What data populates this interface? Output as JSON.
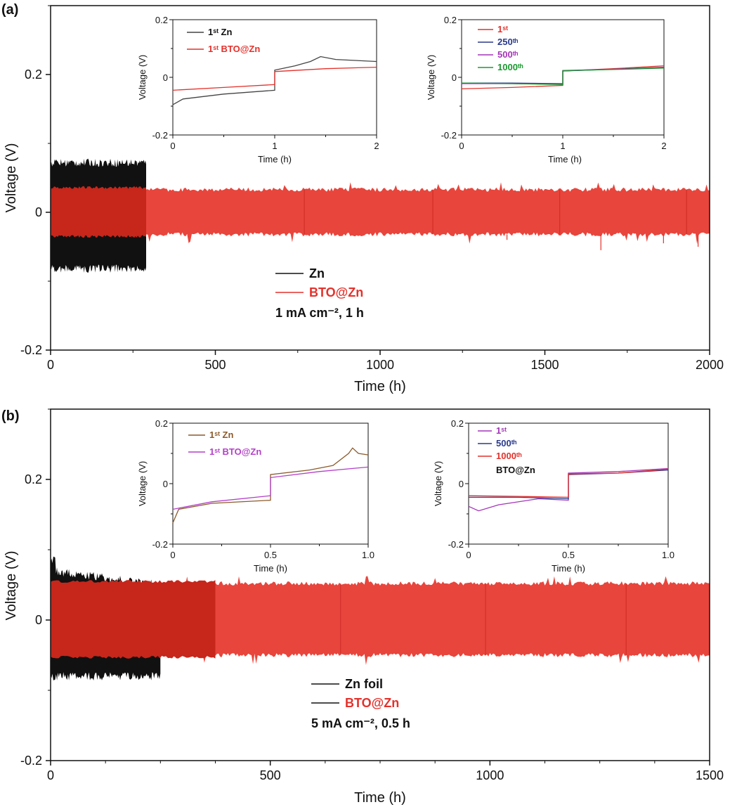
{
  "colors": {
    "zn": "#111111",
    "bto": "#e4312b",
    "bto_dark": "#c7261b"
  },
  "chart_data": [
    {
      "panel": "(a)",
      "type": "line",
      "xlabel": "Time (h)",
      "ylabel": "Voltage (V)",
      "xlim": [
        0,
        2000
      ],
      "ylim": [
        -0.2,
        0.3
      ],
      "xticks": [
        "0",
        "500",
        "1000",
        "1500",
        "2000"
      ],
      "yticks": [
        "-0.2",
        "0",
        "0.2"
      ],
      "series": [
        {
          "name": "Zn",
          "color": "#111111",
          "end_time": 290,
          "voltage_band": [
            -0.082,
            0.072
          ]
        },
        {
          "name": "BTO@Zn",
          "color": "#e4312b",
          "end_time": 2000,
          "voltage_band": [
            -0.032,
            0.033
          ]
        }
      ],
      "legend": {
        "zn": "Zn",
        "bto": "BTO@Zn",
        "condition": "1 mA cm⁻², 1 h"
      },
      "insets": [
        {
          "xlabel": "Time (h)",
          "ylabel": "Voltage (V)",
          "xlim": [
            0,
            2
          ],
          "ylim": [
            -0.2,
            0.2
          ],
          "xticks": [
            "0",
            "1",
            "2"
          ],
          "yticks": [
            "-0.2",
            "0",
            "0.2"
          ],
          "legend": [
            {
              "name": "1ˢᵗ Zn",
              "color": "#444444"
            },
            {
              "name": "1ˢᵗ BTO@Zn",
              "color": "#e4312b"
            }
          ],
          "series": [
            {
              "name": "1st Zn",
              "color": "#444444",
              "points": [
                [
                  0,
                  -0.095
                ],
                [
                  0.1,
                  -0.075
                ],
                [
                  0.5,
                  -0.058
                ],
                [
                  1.0,
                  -0.045
                ],
                [
                  1.0,
                  0.025
                ],
                [
                  1.2,
                  0.04
                ],
                [
                  1.35,
                  0.055
                ],
                [
                  1.45,
                  0.072
                ],
                [
                  1.6,
                  0.062
                ],
                [
                  2.0,
                  0.055
                ]
              ]
            },
            {
              "name": "1st BTO@Zn",
              "color": "#e4312b",
              "points": [
                [
                  0,
                  -0.045
                ],
                [
                  0.5,
                  -0.035
                ],
                [
                  1.0,
                  -0.025
                ],
                [
                  1.0,
                  0.02
                ],
                [
                  1.5,
                  0.03
                ],
                [
                  2.0,
                  0.035
                ]
              ]
            }
          ]
        },
        {
          "xlabel": "Time (h)",
          "ylabel": "Voltage (V)",
          "xlim": [
            0,
            2
          ],
          "ylim": [
            -0.2,
            0.2
          ],
          "xticks": [
            "0",
            "1",
            "2"
          ],
          "yticks": [
            "-0.2",
            "0",
            "0.2"
          ],
          "legend": [
            {
              "name": "1ˢᵗ",
              "color": "#e4312b"
            },
            {
              "name": "250ᵗʰ",
              "color": "#2a3a8c"
            },
            {
              "name": "500ᵗʰ",
              "color": "#a335b8"
            },
            {
              "name": "1000ᵗʰ",
              "color": "#1a9a2e"
            }
          ],
          "series": [
            {
              "name": "1st",
              "color": "#e4312b",
              "points": [
                [
                  0,
                  -0.04
                ],
                [
                  0.5,
                  -0.035
                ],
                [
                  1.0,
                  -0.028
                ],
                [
                  1.0,
                  0.022
                ],
                [
                  1.5,
                  0.03
                ],
                [
                  2.0,
                  0.04
                ]
              ]
            },
            {
              "name": "250th",
              "color": "#2a3a8c",
              "points": [
                [
                  0,
                  -0.02
                ],
                [
                  0.5,
                  -0.02
                ],
                [
                  1.0,
                  -0.022
                ],
                [
                  1.0,
                  0.022
                ],
                [
                  1.5,
                  0.028
                ],
                [
                  2.0,
                  0.035
                ]
              ]
            },
            {
              "name": "500th",
              "color": "#a335b8",
              "points": [
                [
                  0,
                  -0.022
                ],
                [
                  0.5,
                  -0.022
                ],
                [
                  1.0,
                  -0.024
                ],
                [
                  1.0,
                  0.024
                ],
                [
                  1.5,
                  0.028
                ],
                [
                  2.0,
                  0.034
                ]
              ]
            },
            {
              "name": "1000th",
              "color": "#1a9a2e",
              "points": [
                [
                  0,
                  -0.02
                ],
                [
                  0.5,
                  -0.022
                ],
                [
                  1.0,
                  -0.025
                ],
                [
                  1.0,
                  0.023
                ],
                [
                  1.5,
                  0.027
                ],
                [
                  2.0,
                  0.032
                ]
              ]
            }
          ]
        }
      ]
    },
    {
      "panel": "(b)",
      "type": "line",
      "xlabel": "Time (h)",
      "ylabel": "Voltage (V)",
      "xlim": [
        0,
        1500
      ],
      "ylim": [
        -0.2,
        0.3
      ],
      "xticks": [
        "0",
        "500",
        "1000",
        "1500"
      ],
      "yticks": [
        "-0.2",
        "0",
        "0.2"
      ],
      "series": [
        {
          "name": "Zn foil",
          "color": "#111111",
          "end_time": 250,
          "voltage_band": [
            -0.08,
            0.07
          ]
        },
        {
          "name": "BTO@Zn",
          "color": "#e4312b",
          "end_time": 1500,
          "voltage_band": [
            -0.05,
            0.052
          ]
        }
      ],
      "legend": {
        "zn": "Zn foil",
        "bto": "BTO@Zn",
        "condition": "5 mA cm⁻², 0.5 h"
      },
      "insets": [
        {
          "xlabel": "Time (h)",
          "ylabel": "Voltage (V)",
          "xlim": [
            0,
            1.0
          ],
          "ylim": [
            -0.2,
            0.2
          ],
          "xticks": [
            "0",
            "0.5",
            "1.0"
          ],
          "yticks": [
            "-0.2",
            "0",
            "0.2"
          ],
          "legend": [
            {
              "name": "1ˢᵗ Zn",
              "color": "#8b5a2b"
            },
            {
              "name": "1ˢᵗ BTO@Zn",
              "color": "#b43fc9"
            }
          ],
          "series": [
            {
              "name": "1st Zn",
              "color": "#8b5a2b",
              "points": [
                [
                  0,
                  -0.13
                ],
                [
                  0.03,
                  -0.085
                ],
                [
                  0.2,
                  -0.065
                ],
                [
                  0.5,
                  -0.055
                ],
                [
                  0.5,
                  0.03
                ],
                [
                  0.7,
                  0.045
                ],
                [
                  0.82,
                  0.06
                ],
                [
                  0.9,
                  0.1
                ],
                [
                  0.92,
                  0.118
                ],
                [
                  0.95,
                  0.1
                ],
                [
                  1.0,
                  0.095
                ]
              ]
            },
            {
              "name": "1st BTO@Zn",
              "color": "#b43fc9",
              "points": [
                [
                  0,
                  -0.085
                ],
                [
                  0.2,
                  -0.06
                ],
                [
                  0.5,
                  -0.04
                ],
                [
                  0.5,
                  0.02
                ],
                [
                  0.75,
                  0.04
                ],
                [
                  1.0,
                  0.055
                ]
              ]
            }
          ]
        },
        {
          "xlabel": "Time (h)",
          "ylabel": "Voltage (V)",
          "xlim": [
            0,
            1.0
          ],
          "ylim": [
            -0.2,
            0.2
          ],
          "xticks": [
            "0",
            "0.5",
            "1.0"
          ],
          "yticks": [
            "-0.2",
            "0",
            "0.2"
          ],
          "legend": [
            {
              "name": "1ˢᵗ",
              "color": "#a335b8"
            },
            {
              "name": "500ᵗʰ",
              "color": "#2a3a8c"
            },
            {
              "name": "1000ᵗʰ",
              "color": "#e4312b"
            }
          ],
          "note": "BTO@Zn",
          "series": [
            {
              "name": "1st",
              "color": "#a335b8",
              "points": [
                [
                  0,
                  -0.075
                ],
                [
                  0.05,
                  -0.09
                ],
                [
                  0.15,
                  -0.07
                ],
                [
                  0.35,
                  -0.05
                ],
                [
                  0.5,
                  -0.055
                ],
                [
                  0.5,
                  0.035
                ],
                [
                  0.75,
                  0.04
                ],
                [
                  1.0,
                  0.05
                ]
              ]
            },
            {
              "name": "500th",
              "color": "#2a3a8c",
              "points": [
                [
                  0,
                  -0.045
                ],
                [
                  0.25,
                  -0.045
                ],
                [
                  0.5,
                  -0.05
                ],
                [
                  0.5,
                  0.03
                ],
                [
                  0.75,
                  0.035
                ],
                [
                  1.0,
                  0.045
                ]
              ]
            },
            {
              "name": "1000th",
              "color": "#e4312b",
              "points": [
                [
                  0,
                  -0.04
                ],
                [
                  0.25,
                  -0.042
                ],
                [
                  0.5,
                  -0.045
                ],
                [
                  0.5,
                  0.032
                ],
                [
                  0.75,
                  0.035
                ],
                [
                  1.0,
                  0.048
                ]
              ]
            }
          ]
        }
      ]
    }
  ]
}
